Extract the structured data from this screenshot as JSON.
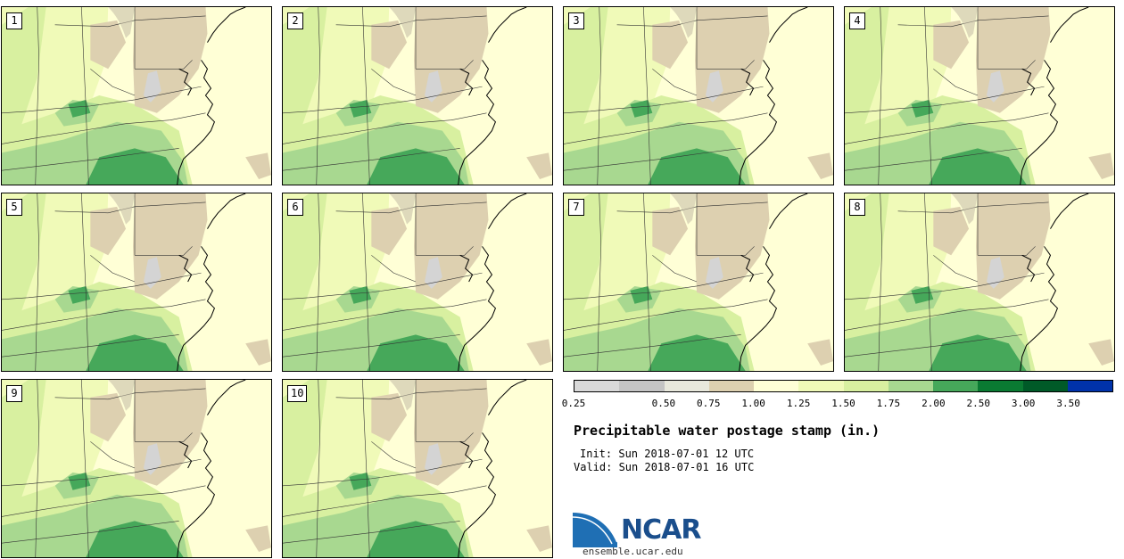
{
  "stamps": [
    {
      "label": "1"
    },
    {
      "label": "2"
    },
    {
      "label": "3"
    },
    {
      "label": "4"
    },
    {
      "label": "5"
    },
    {
      "label": "6"
    },
    {
      "label": "7"
    },
    {
      "label": "8"
    },
    {
      "label": "9"
    },
    {
      "label": "10"
    }
  ],
  "legend": {
    "colors": [
      "#d9d9d9",
      "#c4c4c4",
      "#e8e8dc",
      "#ddd0b0",
      "#ffffd6",
      "#f0fab8",
      "#d8f0a0",
      "#a8d890",
      "#46a85a",
      "#0a7a32",
      "#005a28",
      "#0032aa"
    ],
    "ticks": [
      "0.25",
      "0.50",
      "0.75",
      "1.00",
      "1.25",
      "1.50",
      "1.75",
      "2.00",
      "2.50",
      "3.00",
      "3.50"
    ]
  },
  "title": "Precipitable water postage stamp (in.)",
  "init_line": "Init: Sun 2018-07-01 12 UTC",
  "valid_line": "Valid: Sun 2018-07-01 16 UTC",
  "logo_text": "NCAR",
  "site": "ensemble.ucar.edu"
}
